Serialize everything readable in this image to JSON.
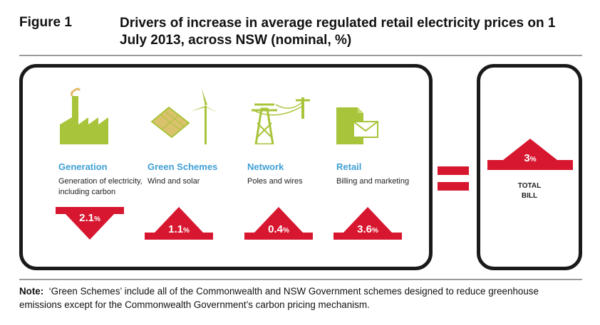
{
  "figure": {
    "label": "Figure 1",
    "title": "Drivers of increase in average regulated retail electricity prices on 1 July 2013, across NSW (nominal, %)"
  },
  "drivers": [
    {
      "name": "Generation",
      "description": "Generation of electricity, including carbon",
      "value": "2.1",
      "unit": "%",
      "direction": "down",
      "icon": "factory-icon"
    },
    {
      "name": "Green Schemes",
      "description": "Wind and solar",
      "value": "1.1",
      "unit": "%",
      "direction": "up",
      "icon": "solar-wind-icon"
    },
    {
      "name": "Network",
      "description": "Poles and wires",
      "value": "0.4",
      "unit": "%",
      "direction": "up",
      "icon": "power-pole-icon"
    },
    {
      "name": "Retail",
      "description": "Billing and marketing",
      "value": "3.6",
      "unit": "%",
      "direction": "up",
      "icon": "bill-envelope-icon"
    }
  ],
  "total": {
    "value": "3",
    "unit": "%",
    "label_line1": "TOTAL",
    "label_line2": "BILL",
    "direction": "up"
  },
  "note": {
    "label": "Note:",
    "text": "‘Green Schemes’ include all of the Commonwealth and NSW Government schemes designed to reduce greenhouse emissions except for the Commonwealth Government’s carbon pricing mechanism."
  },
  "colors": {
    "accent_green": "#a8c43a",
    "arrow_red": "#d7172f",
    "name_blue": "#3f9fd6",
    "panel_border": "#1a1a1a"
  }
}
